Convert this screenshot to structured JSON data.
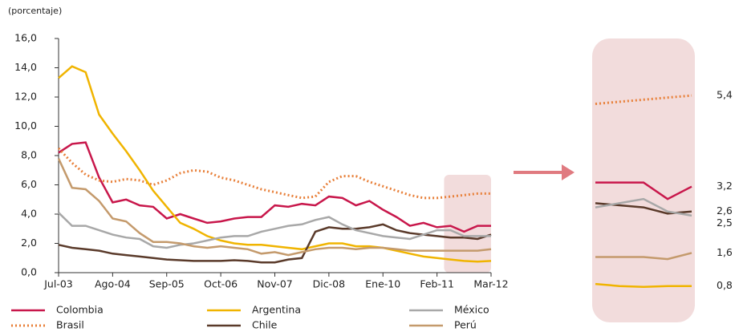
{
  "chart_data": [
    {
      "type": "line",
      "y_label": "(porcentaje)",
      "categories": [
        "Jul-03",
        null,
        null,
        null,
        "Ago-04",
        null,
        null,
        null,
        "Sep-05",
        null,
        null,
        null,
        "Oct-06",
        null,
        null,
        null,
        "Nov-07",
        null,
        null,
        null,
        "Dic-08",
        null,
        null,
        null,
        "Ene-10",
        null,
        null,
        null,
        "Feb-11",
        null,
        null,
        null,
        "Mar-12"
      ],
      "ylim": [
        0,
        16
      ],
      "yticks": [
        {
          "value": 0,
          "label": "0,0"
        },
        {
          "value": 2,
          "label": "2,0"
        },
        {
          "value": 4,
          "label": "4,0"
        },
        {
          "value": 6,
          "label": "6,0"
        },
        {
          "value": 8,
          "label": "8,0"
        },
        {
          "value": 10,
          "label": "10,0"
        },
        {
          "value": 12,
          "label": "12,0"
        },
        {
          "value": 14,
          "label": "14,0"
        },
        {
          "value": 16,
          "label": "16,0"
        }
      ],
      "highlight_color": "#f2dcdc",
      "series": [
        {
          "name": "Colombia",
          "color": "#c8174b",
          "dashed": false,
          "values": [
            8.2,
            8.8,
            8.9,
            6.5,
            4.8,
            5.0,
            4.6,
            4.5,
            3.7,
            4.0,
            3.7,
            3.4,
            3.5,
            3.7,
            3.8,
            3.8,
            4.6,
            4.5,
            4.7,
            4.6,
            5.2,
            5.1,
            4.6,
            4.9,
            4.3,
            3.8,
            3.2,
            3.4,
            3.1,
            3.2,
            2.8,
            3.2,
            3.2
          ]
        },
        {
          "name": "Brasil",
          "color": "#e8803a",
          "dashed": true,
          "values": [
            8.5,
            7.5,
            6.7,
            6.3,
            6.2,
            6.4,
            6.3,
            6.0,
            6.3,
            6.8,
            7.0,
            6.9,
            6.5,
            6.3,
            6.0,
            5.7,
            5.5,
            5.3,
            5.1,
            5.2,
            6.2,
            6.6,
            6.6,
            6.2,
            5.9,
            5.6,
            5.3,
            5.1,
            5.1,
            5.2,
            5.3,
            5.4,
            5.4
          ]
        },
        {
          "name": "Argentina",
          "color": "#f0b400",
          "dashed": false,
          "values": [
            13.3,
            14.1,
            13.7,
            10.8,
            9.5,
            8.3,
            7.0,
            5.6,
            4.5,
            3.4,
            3.0,
            2.5,
            2.2,
            2.0,
            1.9,
            1.9,
            1.8,
            1.7,
            1.6,
            1.8,
            2.0,
            2.0,
            1.8,
            1.8,
            1.7,
            1.5,
            1.3,
            1.1,
            1.0,
            0.9,
            0.8,
            0.75,
            0.8
          ]
        },
        {
          "name": "Chile",
          "color": "#5a3a2a",
          "dashed": false,
          "values": [
            1.9,
            1.7,
            1.6,
            1.5,
            1.3,
            1.2,
            1.1,
            1.0,
            0.9,
            0.85,
            0.8,
            0.8,
            0.8,
            0.85,
            0.8,
            0.7,
            0.7,
            0.9,
            1.0,
            2.8,
            3.1,
            3.0,
            3.0,
            3.1,
            3.3,
            2.9,
            2.7,
            2.6,
            2.5,
            2.4,
            2.4,
            2.3,
            2.6
          ]
        },
        {
          "name": "México",
          "color": "#a8a8a8",
          "dashed": false,
          "values": [
            4.1,
            3.2,
            3.2,
            2.9,
            2.6,
            2.4,
            2.3,
            1.8,
            1.7,
            1.9,
            2.0,
            2.2,
            2.4,
            2.5,
            2.5,
            2.8,
            3.0,
            3.2,
            3.3,
            3.6,
            3.8,
            3.3,
            2.9,
            2.7,
            2.5,
            2.4,
            2.3,
            2.6,
            2.9,
            2.9,
            2.5,
            2.5,
            2.5
          ]
        },
        {
          "name": "Perú",
          "color": "#c49a6c",
          "dashed": false,
          "values": [
            7.8,
            5.8,
            5.7,
            4.9,
            3.7,
            3.5,
            2.7,
            2.1,
            2.1,
            2.0,
            1.8,
            1.7,
            1.8,
            1.7,
            1.6,
            1.3,
            1.4,
            1.2,
            1.4,
            1.6,
            1.7,
            1.7,
            1.6,
            1.7,
            1.7,
            1.6,
            1.5,
            1.5,
            1.5,
            1.5,
            1.5,
            1.5,
            1.6
          ]
        }
      ]
    },
    {
      "type": "inset",
      "ylim": [
        0,
        6.7
      ],
      "color": "#f2dcdc",
      "series": [
        {
          "color": "#e8803a",
          "dashed": true,
          "values": [
            5.2,
            5.25,
            5.3,
            5.35,
            5.4
          ],
          "value_labels": [
            null,
            null,
            null,
            null,
            "5,4"
          ]
        },
        {
          "color": "#c8174b",
          "dashed": false,
          "values": [
            3.3,
            3.3,
            3.3,
            2.9,
            3.2
          ],
          "value_labels": [
            null,
            null,
            null,
            null,
            "3,2"
          ]
        },
        {
          "color": "#f0b400",
          "dashed": false,
          "values": [
            0.85,
            0.8,
            0.78,
            0.8,
            0.8
          ],
          "value_labels": [
            null,
            null,
            null,
            null,
            "0,8"
          ]
        },
        {
          "color": "#5a3a2a",
          "dashed": false,
          "values": [
            2.8,
            2.75,
            2.7,
            2.55,
            2.6
          ],
          "value_labels": [
            null,
            null,
            null,
            null,
            "2,6"
          ]
        },
        {
          "color": "#a8a8a8",
          "dashed": false,
          "values": [
            2.7,
            2.8,
            2.9,
            2.6,
            2.5
          ],
          "value_labels": [
            null,
            null,
            null,
            null,
            "2,5"
          ]
        },
        {
          "color": "#c49a6c",
          "dashed": false,
          "values": [
            1.5,
            1.5,
            1.5,
            1.45,
            1.6
          ],
          "value_labels": [
            null,
            null,
            null,
            null,
            "1,6"
          ]
        }
      ]
    }
  ]
}
